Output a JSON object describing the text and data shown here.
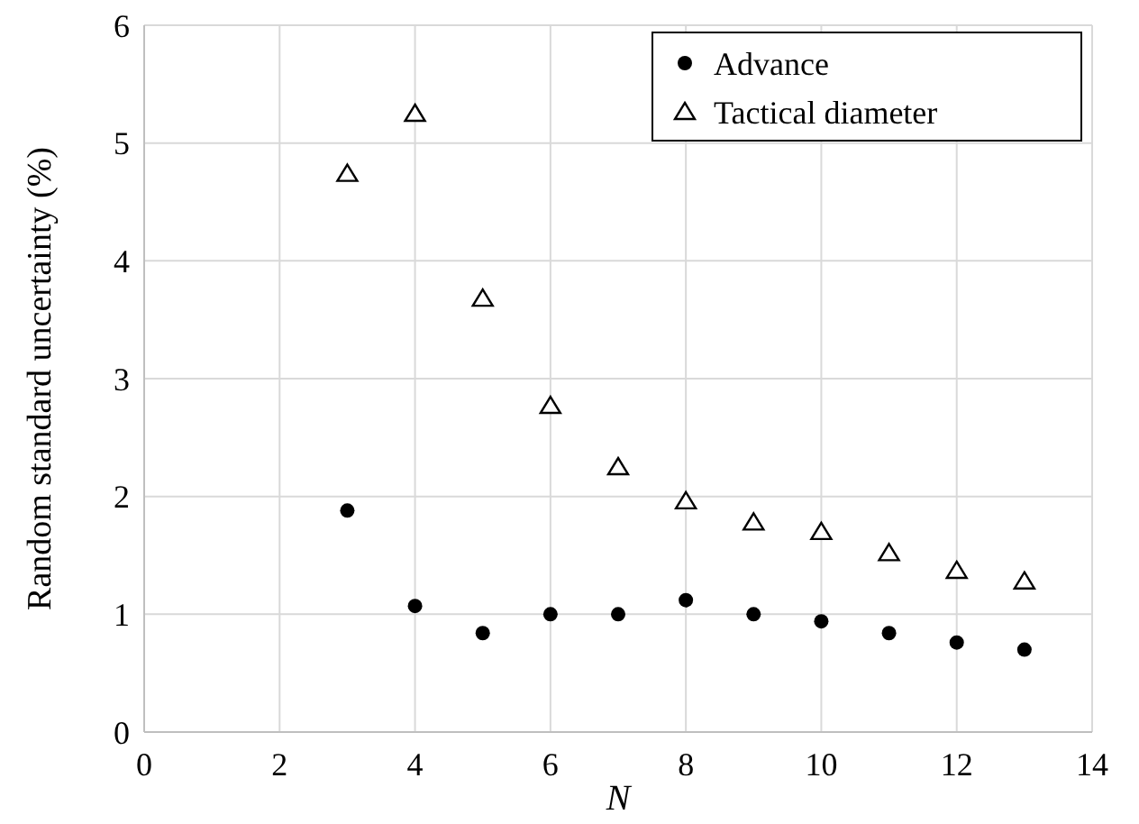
{
  "chart_data": {
    "type": "scatter",
    "xlabel": "N",
    "ylabel": "Random standard uncertainty (%)",
    "x": [
      3,
      4,
      5,
      6,
      7,
      8,
      9,
      10,
      11,
      12,
      13
    ],
    "series": [
      {
        "name": "Advance",
        "color": "#000000",
        "marker": "circle",
        "values": [
          1.88,
          1.07,
          0.84,
          1.0,
          1.0,
          1.12,
          1.0,
          0.94,
          0.84,
          0.76,
          0.7
        ]
      },
      {
        "name": "Tactical diameter",
        "color": "#000000",
        "marker": "triangle",
        "values": [
          4.74,
          5.25,
          3.68,
          2.77,
          2.25,
          1.96,
          1.78,
          1.7,
          1.52,
          1.37,
          1.28
        ]
      }
    ],
    "xlim": [
      0,
      14
    ],
    "xticks": [
      0,
      2,
      4,
      6,
      8,
      10,
      12,
      14
    ],
    "ylim": [
      0,
      6
    ],
    "yticks": [
      0,
      1,
      2,
      3,
      4,
      5,
      6
    ],
    "grid": true,
    "legend": "top right"
  }
}
